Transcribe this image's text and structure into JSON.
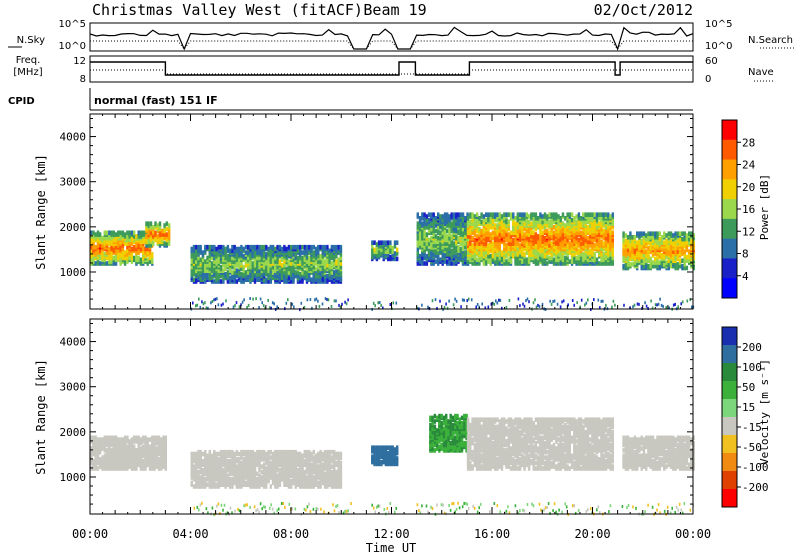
{
  "header": {
    "station": "Christmas Valley West (fitACF)",
    "beam": "Beam 19",
    "date": "02/Oct/2012"
  },
  "strip": {
    "nsky_label": "N.Sky",
    "nsearch_label": "N.Search",
    "freq_label_1": "Freq.",
    "freq_label_2": "[MHz]",
    "nave_label": "Nave",
    "cpid_label": "CPID",
    "cpid_text": "normal (fast) 151 IF",
    "noise_ticks_left": [
      "10^5",
      "10^0"
    ],
    "noise_ticks_right": [
      "10^5",
      "10^0"
    ],
    "freq_ticks": [
      "12",
      "8"
    ],
    "nave_ticks": [
      "60",
      "0"
    ]
  },
  "colorbars": {
    "power": {
      "label": "Power [dB]",
      "ticks": [
        "28",
        "24",
        "20",
        "16",
        "12",
        "8",
        "4"
      ],
      "colors": [
        "#ff0000",
        "#ff5a00",
        "#ffa000",
        "#f0d000",
        "#9bd84c",
        "#3c9a5a",
        "#2a6fa8",
        "#1a20c8",
        "#0000ff"
      ]
    },
    "velocity": {
      "label": "Velocity [m s⁻¹]",
      "ticks": [
        "200",
        "100",
        "50",
        "15",
        "-15",
        "-50",
        "-100",
        "-200"
      ],
      "colors": [
        "#1a2fb0",
        "#2f6fa0",
        "#2a8a3c",
        "#3bb13b",
        "#7cd67c",
        "#c8c8c0",
        "#f0c020",
        "#f08a10",
        "#e04000",
        "#ff0000"
      ]
    }
  },
  "chart_data": [
    {
      "type": "heatmap",
      "title": "Power",
      "xlabel": "Time UT",
      "ylabel": "Slant Range [km]",
      "x_ticks": [
        "00:00",
        "04:00",
        "08:00",
        "12:00",
        "16:00",
        "20:00",
        "00:00"
      ],
      "y_ticks": [
        1000,
        2000,
        3000,
        4000
      ],
      "xlim": [
        0,
        24
      ],
      "ylim": [
        180,
        4500
      ],
      "colorbar_label": "Power [dB]",
      "colorbar_ticks": [
        28,
        24,
        20,
        16,
        12,
        8,
        4
      ],
      "data_gaps_hours": [
        [
          3.6,
          3.85
        ],
        [
          10.4,
          11.1
        ],
        [
          12.25,
          12.95
        ],
        [
          20.9,
          21.1
        ]
      ],
      "echo_regions": [
        {
          "t_start": 0.0,
          "t_end": 2.5,
          "range_km": [
            1200,
            1900
          ],
          "power_db": 24
        },
        {
          "t_start": 2.2,
          "t_end": 3.1,
          "range_km": [
            1600,
            2100
          ],
          "power_db": 24
        },
        {
          "t_start": 4.0,
          "t_end": 10.0,
          "range_km": [
            800,
            1600
          ],
          "power_db": 14
        },
        {
          "t_start": 11.1,
          "t_end": 12.2,
          "range_km": [
            1300,
            1700
          ],
          "power_db": 14
        },
        {
          "t_start": 13.0,
          "t_end": 15.0,
          "range_km": [
            1200,
            2300
          ],
          "power_db": 14
        },
        {
          "t_start": 15.0,
          "t_end": 20.8,
          "range_km": [
            1200,
            2300
          ],
          "power_db": 24
        },
        {
          "t_start": 21.1,
          "t_end": 24.0,
          "range_km": [
            1100,
            1900
          ],
          "power_db": 22
        }
      ]
    },
    {
      "type": "heatmap",
      "title": "Velocity",
      "xlabel": "Time UT",
      "ylabel": "Slant Range [km]",
      "x_ticks": [
        "00:00",
        "04:00",
        "08:00",
        "12:00",
        "16:00",
        "20:00",
        "00:00"
      ],
      "y_ticks": [
        1000,
        2000,
        3000,
        4000
      ],
      "xlim": [
        0,
        24
      ],
      "ylim": [
        180,
        4500
      ],
      "colorbar_label": "Velocity [m s⁻¹]",
      "colorbar_ticks": [
        200,
        100,
        50,
        15,
        -15,
        -50,
        -100,
        -200
      ],
      "data_gaps_hours": [
        [
          3.6,
          3.85
        ],
        [
          10.4,
          11.1
        ],
        [
          12.25,
          12.95
        ],
        [
          20.9,
          21.1
        ]
      ],
      "echo_regions": [
        {
          "t_start": 0.0,
          "t_end": 3.0,
          "range_km": [
            1200,
            1900
          ],
          "velocity_ms": 0
        },
        {
          "t_start": 4.0,
          "t_end": 10.0,
          "range_km": [
            800,
            1600
          ],
          "velocity_ms": 0
        },
        {
          "t_start": 11.1,
          "t_end": 12.2,
          "range_km": [
            1300,
            1700
          ],
          "velocity_ms": 100
        },
        {
          "t_start": 13.5,
          "t_end": 15.0,
          "range_km": [
            1600,
            2400
          ],
          "velocity_ms": 30
        },
        {
          "t_start": 15.0,
          "t_end": 20.8,
          "range_km": [
            1200,
            2300
          ],
          "velocity_ms": 0
        },
        {
          "t_start": 21.1,
          "t_end": 24.0,
          "range_km": [
            1200,
            1900
          ],
          "velocity_ms": 0
        }
      ]
    }
  ]
}
